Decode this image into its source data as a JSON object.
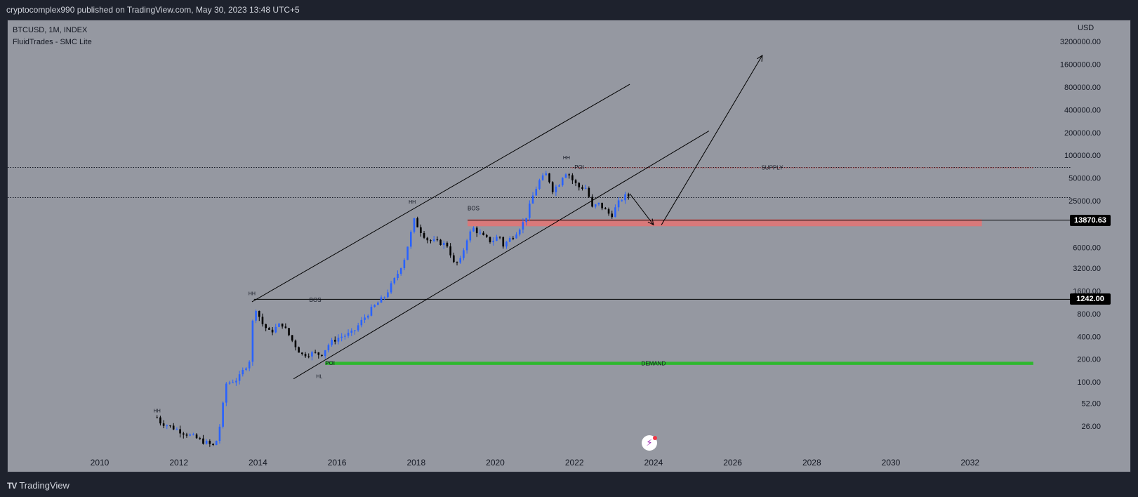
{
  "header": {
    "publish_line": "cryptocomplex990 published on TradingView.com, May 30, 2023 13:48 UTC+5"
  },
  "symbol": {
    "line1": "BTCUSD, 1M, INDEX",
    "line2": "FluidTrades - SMC Lite",
    "currency": "USD"
  },
  "footer": {
    "brand": "TradingView",
    "logo_text": "TV"
  },
  "price_tags": [
    {
      "label": "13870.63"
    },
    {
      "label": "1242.00"
    }
  ],
  "lightning_icon": "⚡",
  "colors": {
    "bull": "#2962ff",
    "bear": "#000000",
    "supply_zone": "#e57373",
    "demand_zone": "#2eb82e",
    "supply_line": "#c62828"
  },
  "chart_data": {
    "type": "candlestick",
    "symbol": "BTCUSD",
    "interval": "1M",
    "y_scale": "log",
    "ylim": [
      17,
      5000000
    ],
    "xlim": [
      2008.9,
      2034.0
    ],
    "y_ticks": [
      {
        "value": 3200000,
        "label": "3200000.00"
      },
      {
        "value": 1600000,
        "label": "1600000.00"
      },
      {
        "value": 800000,
        "label": "800000.00"
      },
      {
        "value": 400000,
        "label": "400000.00"
      },
      {
        "value": 200000,
        "label": "200000.00"
      },
      {
        "value": 100000,
        "label": "100000.00"
      },
      {
        "value": 50000,
        "label": "50000.00"
      },
      {
        "value": 25000,
        "label": "25000.00"
      },
      {
        "value": 6000,
        "label": "6000.00"
      },
      {
        "value": 3200,
        "label": "3200.00"
      },
      {
        "value": 1600,
        "label": "1600.00"
      },
      {
        "value": 800,
        "label": "800.00"
      },
      {
        "value": 400,
        "label": "400.00"
      },
      {
        "value": 200,
        "label": "200.00"
      },
      {
        "value": 100,
        "label": "100.00"
      },
      {
        "value": 52,
        "label": "52.00"
      },
      {
        "value": 26,
        "label": "26.00"
      }
    ],
    "x_ticks": [
      {
        "value": 2010,
        "label": "2010"
      },
      {
        "value": 2012,
        "label": "2012"
      },
      {
        "value": 2014,
        "label": "2014"
      },
      {
        "value": 2016,
        "label": "2016"
      },
      {
        "value": 2018,
        "label": "2018"
      },
      {
        "value": 2020,
        "label": "2020"
      },
      {
        "value": 2022,
        "label": "2022"
      },
      {
        "value": 2024,
        "label": "2024"
      },
      {
        "value": 2026,
        "label": "2026"
      },
      {
        "value": 2028,
        "label": "2028"
      },
      {
        "value": 2030,
        "label": "2030"
      },
      {
        "value": 2032,
        "label": "2032"
      }
    ],
    "price_levels": [
      {
        "value": 13870.63,
        "label": "13870.63"
      },
      {
        "value": 1242.0,
        "label": "1242.00"
      }
    ],
    "dotted_levels": [
      69000,
      27500
    ],
    "zones": [
      {
        "name": "supply",
        "from": 11500,
        "to": 14200,
        "x0": 2019.3,
        "x1": 2032.3
      },
      {
        "name": "demand",
        "from": 168,
        "to": 185,
        "x0": 2015.7,
        "x1": 2033.6
      }
    ],
    "supply_line": {
      "value": 69000,
      "x0": 2021.9,
      "x1": 2033.6
    },
    "trend_lines": [
      {
        "x0": 2013.85,
        "y0": 1150,
        "x1": 2023.4,
        "y1": 870000
      },
      {
        "x0": 2014.9,
        "y0": 110,
        "x1": 2025.4,
        "y1": 210000
      }
    ],
    "arrows": [
      {
        "x0": 2023.4,
        "y0": 31000,
        "x1": 2024.0,
        "y1": 12000
      },
      {
        "x0": 2024.2,
        "y0": 12000,
        "x1": 2026.75,
        "y1": 2100000
      }
    ],
    "annotations": [
      {
        "text": "HH",
        "x": 2011.45,
        "y": 42
      },
      {
        "text": "HH",
        "x": 2013.85,
        "y": 1500
      },
      {
        "text": "BOS",
        "x": 2015.3,
        "y": 1230
      },
      {
        "text": "POI",
        "x": 2015.7,
        "y": 178
      },
      {
        "text": "HL",
        "x": 2015.55,
        "y": 120
      },
      {
        "text": "HH",
        "x": 2017.9,
        "y": 24500
      },
      {
        "text": "BOS",
        "x": 2019.3,
        "y": 20000
      },
      {
        "text": "HH",
        "x": 2021.8,
        "y": 94000
      },
      {
        "text": "POI",
        "x": 2022.0,
        "y": 70000
      },
      {
        "text": "SUPPLY",
        "x": 2027.0,
        "y": 69000
      },
      {
        "text": "DEMAND",
        "x": 2024.0,
        "y": 177
      }
    ],
    "candles_note": "approximate monthly OHLC read off the log-scale chart; keypoints [time, close] are linearly interpolated in log space between anchor months",
    "candle_keypoints": [
      [
        2011.45,
        34
      ],
      [
        2011.5,
        30
      ],
      [
        2012.9,
        14
      ],
      [
        2013.0,
        20
      ],
      [
        2013.2,
        95
      ],
      [
        2013.5,
        110
      ],
      [
        2013.8,
        200
      ],
      [
        2013.9,
        1100
      ],
      [
        2014.1,
        600
      ],
      [
        2014.3,
        450
      ],
      [
        2014.6,
        600
      ],
      [
        2014.9,
        330
      ],
      [
        2015.1,
        230
      ],
      [
        2015.4,
        240
      ],
      [
        2015.6,
        230
      ],
      [
        2015.8,
        320
      ],
      [
        2016.0,
        380
      ],
      [
        2016.4,
        450
      ],
      [
        2016.6,
        620
      ],
      [
        2016.9,
        960
      ],
      [
        2017.2,
        1350
      ],
      [
        2017.5,
        2500
      ],
      [
        2017.7,
        4300
      ],
      [
        2017.95,
        13800
      ],
      [
        2018.1,
        10200
      ],
      [
        2018.3,
        7500
      ],
      [
        2018.6,
        7000
      ],
      [
        2018.8,
        6400
      ],
      [
        2018.95,
        3700
      ],
      [
        2019.1,
        3800
      ],
      [
        2019.3,
        8500
      ],
      [
        2019.45,
        10800
      ],
      [
        2019.7,
        8300
      ],
      [
        2019.9,
        7200
      ],
      [
        2020.1,
        8700
      ],
      [
        2020.2,
        6400
      ],
      [
        2020.5,
        9200
      ],
      [
        2020.75,
        13800
      ],
      [
        2020.95,
        29000
      ],
      [
        2021.1,
        45000
      ],
      [
        2021.3,
        57000
      ],
      [
        2021.45,
        35000
      ],
      [
        2021.6,
        41000
      ],
      [
        2021.75,
        61000
      ],
      [
        2021.85,
        57000
      ],
      [
        2021.95,
        47000
      ],
      [
        2022.1,
        38000
      ],
      [
        2022.3,
        37000
      ],
      [
        2022.45,
        20000
      ],
      [
        2022.6,
        23000
      ],
      [
        2022.75,
        19500
      ],
      [
        2022.85,
        17000
      ],
      [
        2022.95,
        16500
      ],
      [
        2023.1,
        23000
      ],
      [
        2023.25,
        28500
      ],
      [
        2023.38,
        29000
      ],
      [
        2023.42,
        27600
      ]
    ]
  }
}
